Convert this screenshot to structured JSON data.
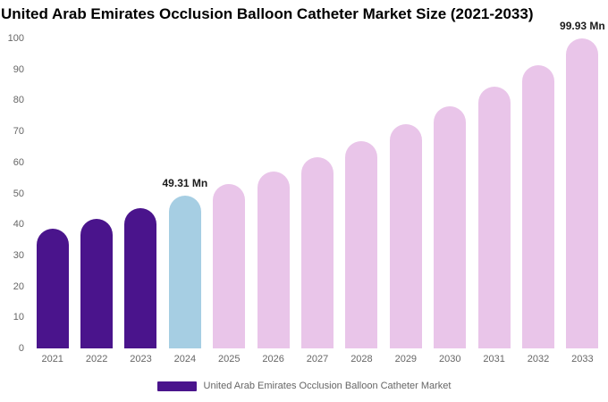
{
  "title": "United Arab Emirates Occlusion Balloon Catheter Market Size (2021-2033)",
  "legend": {
    "label": "United Arab Emirates Occlusion Balloon Catheter Market",
    "swatch_color": "#4A148C"
  },
  "colors": {
    "historical_bar": "#4A148C",
    "current_bar": "#A6CEE3",
    "forecast_bar": "#E9C5E9",
    "axis_text": "#666666",
    "annotation_text": "#1a1a1a"
  },
  "chart_data": {
    "type": "bar",
    "title": "United Arab Emirates Occlusion Balloon Catheter Market Size (2021-2033)",
    "xlabel": "",
    "ylabel": "",
    "unit": "Mn",
    "categories": [
      "2021",
      "2022",
      "2023",
      "2024",
      "2025",
      "2026",
      "2027",
      "2028",
      "2029",
      "2030",
      "2031",
      "2032",
      "2033"
    ],
    "values": [
      38.5,
      41.8,
      45.2,
      49.31,
      52.9,
      57.2,
      61.8,
      66.8,
      72.2,
      78.1,
      84.4,
      91.3,
      99.93
    ],
    "bar_colors": [
      "#4A148C",
      "#4A148C",
      "#4A148C",
      "#A6CEE3",
      "#E9C5E9",
      "#E9C5E9",
      "#E9C5E9",
      "#E9C5E9",
      "#E9C5E9",
      "#E9C5E9",
      "#E9C5E9",
      "#E9C5E9",
      "#E9C5E9"
    ],
    "annotations": [
      {
        "index": 3,
        "text": "49.31 Mn"
      },
      {
        "index": 12,
        "text": "99.93 Mn"
      }
    ],
    "ylim": [
      0,
      100
    ],
    "ytick_step": 10,
    "grid": false,
    "legend_position": "bottom"
  }
}
